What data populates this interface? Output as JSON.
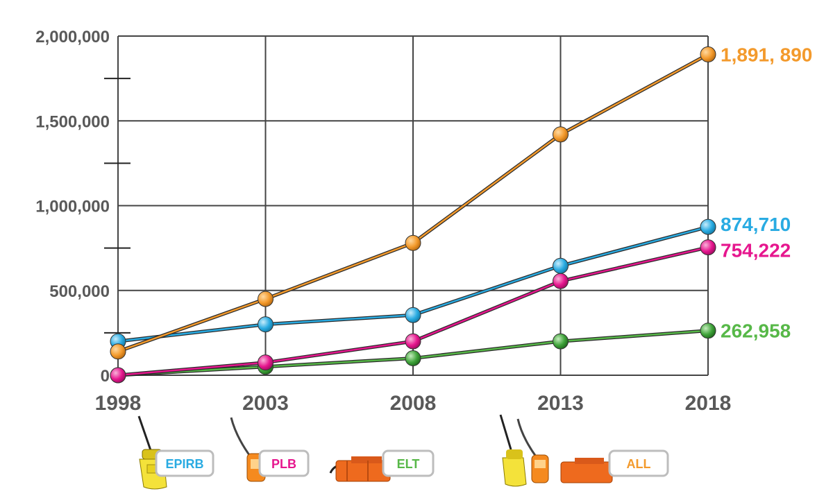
{
  "chart_data": {
    "type": "line",
    "title": "",
    "xlabel": "",
    "ylabel": "",
    "x": [
      "1998",
      "2003",
      "2008",
      "2013",
      "2018"
    ],
    "ylim": [
      0,
      2000000
    ],
    "y_ticks": [
      {
        "value": 0,
        "label": "0"
      },
      {
        "value": 500000,
        "label": "500,000"
      },
      {
        "value": 1000000,
        "label": "1,000,000"
      },
      {
        "value": 1500000,
        "label": "1,500,000"
      },
      {
        "value": 2000000,
        "label": "2,000,000"
      }
    ],
    "grid": true,
    "series": [
      {
        "key": "all",
        "color": "#f39a2c",
        "values": [
          140000,
          450000,
          780000,
          1420000,
          1891890
        ],
        "end_label": "1,891, 890"
      },
      {
        "key": "epirb",
        "color": "#29abe2",
        "values": [
          200000,
          300000,
          355000,
          645000,
          874710
        ],
        "end_label": "874,710"
      },
      {
        "key": "plb",
        "color": "#e6168e",
        "values": [
          0,
          75000,
          200000,
          555000,
          754222
        ],
        "end_label": "754,222"
      },
      {
        "key": "elt",
        "color": "#57b848",
        "values": [
          0,
          50000,
          100000,
          200000,
          262958
        ],
        "end_label": "262,958"
      }
    ],
    "legend": [
      {
        "label": "EPIRB",
        "color": "#29abe2",
        "device": "epirb-beacon-icon"
      },
      {
        "label": "PLB",
        "color": "#e6168e",
        "device": "plb-beacon-icon"
      },
      {
        "label": "ELT",
        "color": "#57b848",
        "device": "elt-beacon-icon"
      },
      {
        "label": "ALL",
        "color": "#f39a2c",
        "device": "all-beacons-icon"
      }
    ]
  }
}
